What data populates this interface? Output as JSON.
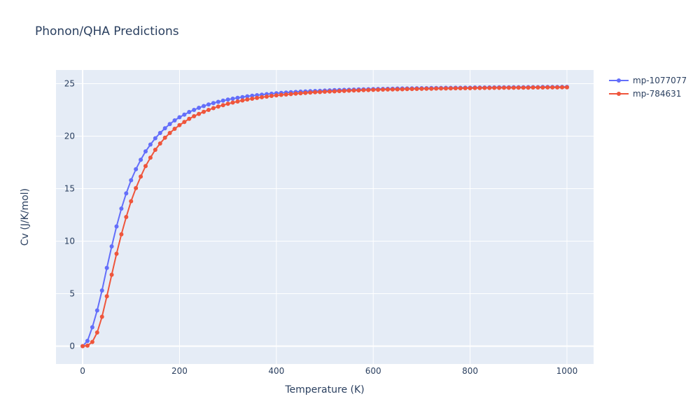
{
  "chart_data": {
    "type": "line",
    "title": "Phonon/QHA Predictions",
    "xlabel": "Temperature (K)",
    "ylabel": "Cv (J/K/mol)",
    "xlim": [
      -55,
      1055
    ],
    "ylim": [
      -1.7,
      26.3
    ],
    "xticks": [
      0,
      200,
      400,
      600,
      800,
      1000
    ],
    "yticks": [
      0,
      5,
      10,
      15,
      20,
      25
    ],
    "grid": true,
    "legend_position": "top-right",
    "x": [
      0,
      10,
      20,
      30,
      40,
      50,
      60,
      70,
      80,
      90,
      100,
      110,
      120,
      130,
      140,
      150,
      160,
      170,
      180,
      190,
      200,
      210,
      220,
      230,
      240,
      250,
      260,
      270,
      280,
      290,
      300,
      310,
      320,
      330,
      340,
      350,
      360,
      370,
      380,
      390,
      400,
      410,
      420,
      430,
      440,
      450,
      460,
      470,
      480,
      490,
      500,
      510,
      520,
      530,
      540,
      550,
      560,
      570,
      580,
      590,
      600,
      610,
      620,
      630,
      640,
      650,
      660,
      670,
      680,
      690,
      700,
      710,
      720,
      730,
      740,
      750,
      760,
      770,
      780,
      790,
      800,
      810,
      820,
      830,
      840,
      850,
      860,
      870,
      880,
      890,
      900,
      910,
      920,
      930,
      940,
      950,
      960,
      970,
      980,
      990,
      1000
    ],
    "series": [
      {
        "name": "mp-1077077",
        "color": "#636efa",
        "values": [
          0,
          0.5,
          1.8,
          3.4,
          5.3,
          7.45,
          9.5,
          11.4,
          13.1,
          14.55,
          15.8,
          16.85,
          17.75,
          18.55,
          19.2,
          19.8,
          20.3,
          20.75,
          21.15,
          21.5,
          21.8,
          22.05,
          22.3,
          22.5,
          22.7,
          22.87,
          23.02,
          23.15,
          23.27,
          23.38,
          23.48,
          23.57,
          23.65,
          23.72,
          23.79,
          23.85,
          23.9,
          23.95,
          24.0,
          24.04,
          24.08,
          24.12,
          24.15,
          24.18,
          24.21,
          24.24,
          24.26,
          24.28,
          24.3,
          24.32,
          24.34,
          24.36,
          24.38,
          24.39,
          24.41,
          24.42,
          24.43,
          24.45,
          24.46,
          24.47,
          24.48,
          24.49,
          24.5,
          24.51,
          24.52,
          24.53,
          24.54,
          24.54,
          24.55,
          24.56,
          24.57,
          24.57,
          24.58,
          24.58,
          24.59,
          24.6,
          24.6,
          24.61,
          24.61,
          24.62,
          24.62,
          24.63,
          24.63,
          24.63,
          24.64,
          24.64,
          24.65,
          24.65,
          24.65,
          24.66,
          24.66,
          24.66,
          24.67,
          24.67,
          24.67,
          24.68,
          24.68,
          24.68,
          24.68,
          24.69,
          24.69
        ]
      },
      {
        "name": "mp-784631",
        "color": "#ef553b",
        "values": [
          0,
          0.05,
          0.4,
          1.3,
          2.8,
          4.75,
          6.8,
          8.8,
          10.65,
          12.3,
          13.8,
          15.05,
          16.15,
          17.15,
          17.95,
          18.7,
          19.3,
          19.85,
          20.3,
          20.7,
          21.05,
          21.35,
          21.65,
          21.9,
          22.12,
          22.32,
          22.5,
          22.67,
          22.82,
          22.95,
          23.08,
          23.2,
          23.3,
          23.4,
          23.49,
          23.57,
          23.64,
          23.71,
          23.77,
          23.83,
          23.88,
          23.93,
          23.97,
          24.01,
          24.05,
          24.08,
          24.12,
          24.15,
          24.18,
          24.2,
          24.23,
          24.25,
          24.27,
          24.29,
          24.31,
          24.33,
          24.35,
          24.36,
          24.38,
          24.39,
          24.41,
          24.42,
          24.43,
          24.44,
          24.45,
          24.46,
          24.47,
          24.48,
          24.49,
          24.5,
          24.51,
          24.52,
          24.52,
          24.53,
          24.54,
          24.54,
          24.55,
          24.56,
          24.56,
          24.57,
          24.57,
          24.58,
          24.58,
          24.59,
          24.59,
          24.6,
          24.6,
          24.61,
          24.61,
          24.61,
          24.62,
          24.62,
          24.62,
          24.63,
          24.63,
          24.63,
          24.64,
          24.64,
          24.64,
          24.65,
          24.65
        ]
      }
    ]
  }
}
